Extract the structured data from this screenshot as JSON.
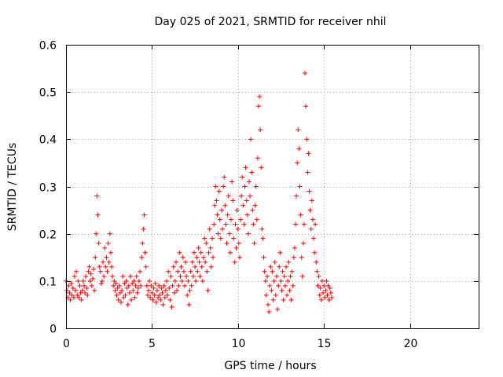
{
  "chart_data": {
    "type": "scatter",
    "title": "Day 025 of 2021, SRMTID for receiver nhil",
    "xlabel": "GPS time / hours",
    "ylabel": "SRMTID / TECUs",
    "xlim": [
      0,
      24
    ],
    "ylim": [
      0,
      0.6
    ],
    "xticks": [
      0,
      5,
      10,
      15,
      20
    ],
    "xtick_labels": [
      "0",
      "5",
      "10",
      "15",
      "20"
    ],
    "yticks": [
      0,
      0.1,
      0.2,
      0.3,
      0.4,
      0.5,
      0.6
    ],
    "ytick_labels": [
      "0",
      "0.1",
      "0.2",
      "0.3",
      "0.4",
      "0.5",
      "0.6"
    ],
    "grid": true,
    "marker": "+",
    "color": "#ff0000",
    "series": [
      {
        "name": "SRMTID",
        "points": [
          [
            0.0,
            0.1
          ],
          [
            0.05,
            0.08
          ],
          [
            0.1,
            0.065
          ],
          [
            0.15,
            0.09
          ],
          [
            0.2,
            0.075
          ],
          [
            0.25,
            0.06
          ],
          [
            0.3,
            0.095
          ],
          [
            0.35,
            0.07
          ],
          [
            0.4,
            0.085
          ],
          [
            0.45,
            0.065
          ],
          [
            0.5,
            0.11
          ],
          [
            0.55,
            0.08
          ],
          [
            0.6,
            0.12
          ],
          [
            0.65,
            0.07
          ],
          [
            0.7,
            0.1
          ],
          [
            0.75,
            0.065
          ],
          [
            0.8,
            0.09
          ],
          [
            0.85,
            0.075
          ],
          [
            0.9,
            0.06
          ],
          [
            0.95,
            0.08
          ],
          [
            1.0,
            0.1
          ],
          [
            1.05,
            0.09
          ],
          [
            1.1,
            0.075
          ],
          [
            1.15,
            0.11
          ],
          [
            1.2,
            0.085
          ],
          [
            1.25,
            0.07
          ],
          [
            1.3,
            0.12
          ],
          [
            1.35,
            0.13
          ],
          [
            1.4,
            0.1
          ],
          [
            1.45,
            0.115
          ],
          [
            1.5,
            0.09
          ],
          [
            1.55,
            0.105
          ],
          [
            1.6,
            0.125
          ],
          [
            1.65,
            0.08
          ],
          [
            1.7,
            0.15
          ],
          [
            1.75,
            0.2
          ],
          [
            1.8,
            0.28
          ],
          [
            1.85,
            0.24
          ],
          [
            1.9,
            0.18
          ],
          [
            1.95,
            0.13
          ],
          [
            2.0,
            0.12
          ],
          [
            2.05,
            0.095
          ],
          [
            2.1,
            0.1
          ],
          [
            2.15,
            0.14
          ],
          [
            2.2,
            0.11
          ],
          [
            2.25,
            0.17
          ],
          [
            2.3,
            0.13
          ],
          [
            2.35,
            0.15
          ],
          [
            2.4,
            0.12
          ],
          [
            2.45,
            0.18
          ],
          [
            2.5,
            0.14
          ],
          [
            2.55,
            0.2
          ],
          [
            2.6,
            0.16
          ],
          [
            2.65,
            0.13
          ],
          [
            2.7,
            0.11
          ],
          [
            2.75,
            0.09
          ],
          [
            2.8,
            0.1
          ],
          [
            2.85,
            0.08
          ],
          [
            2.9,
            0.095
          ],
          [
            2.95,
            0.07
          ],
          [
            3.0,
            0.085
          ],
          [
            3.05,
            0.06
          ],
          [
            3.1,
            0.09
          ],
          [
            3.15,
            0.075
          ],
          [
            3.2,
            0.055
          ],
          [
            3.25,
            0.08
          ],
          [
            3.3,
            0.11
          ],
          [
            3.35,
            0.065
          ],
          [
            3.4,
            0.095
          ],
          [
            3.45,
            0.07
          ],
          [
            3.5,
            0.1
          ],
          [
            3.55,
            0.085
          ],
          [
            3.6,
            0.05
          ],
          [
            3.65,
            0.09
          ],
          [
            3.7,
            0.075
          ],
          [
            3.75,
            0.11
          ],
          [
            3.8,
            0.06
          ],
          [
            3.85,
            0.095
          ],
          [
            3.9,
            0.08
          ],
          [
            3.95,
            0.1
          ],
          [
            4.0,
            0.065
          ],
          [
            4.05,
            0.09
          ],
          [
            4.1,
            0.11
          ],
          [
            4.15,
            0.075
          ],
          [
            4.2,
            0.085
          ],
          [
            4.25,
            0.1
          ],
          [
            4.3,
            0.12
          ],
          [
            4.35,
            0.09
          ],
          [
            4.4,
            0.15
          ],
          [
            4.45,
            0.18
          ],
          [
            4.5,
            0.21
          ],
          [
            4.55,
            0.24
          ],
          [
            4.6,
            0.16
          ],
          [
            4.65,
            0.13
          ],
          [
            4.7,
            0.09
          ],
          [
            4.75,
            0.07
          ],
          [
            4.8,
            0.08
          ],
          [
            4.85,
            0.1
          ],
          [
            4.9,
            0.065
          ],
          [
            4.95,
            0.09
          ],
          [
            5.0,
            0.075
          ],
          [
            5.05,
            0.06
          ],
          [
            5.1,
            0.085
          ],
          [
            5.15,
            0.07
          ],
          [
            5.2,
            0.095
          ],
          [
            5.25,
            0.055
          ],
          [
            5.3,
            0.08
          ],
          [
            5.35,
            0.065
          ],
          [
            5.4,
            0.09
          ],
          [
            5.45,
            0.07
          ],
          [
            5.5,
            0.06
          ],
          [
            5.55,
            0.085
          ],
          [
            5.6,
            0.075
          ],
          [
            5.65,
            0.05
          ],
          [
            5.7,
            0.09
          ],
          [
            5.75,
            0.065
          ],
          [
            5.8,
            0.08
          ],
          [
            5.85,
            0.1
          ],
          [
            5.9,
            0.07
          ],
          [
            5.95,
            0.12
          ],
          [
            6.0,
            0.085
          ],
          [
            6.05,
            0.06
          ],
          [
            6.1,
            0.11
          ],
          [
            6.15,
            0.045
          ],
          [
            6.2,
            0.09
          ],
          [
            6.25,
            0.13
          ],
          [
            6.3,
            0.075
          ],
          [
            6.35,
            0.1
          ],
          [
            6.4,
            0.14
          ],
          [
            6.45,
            0.08
          ],
          [
            6.5,
            0.12
          ],
          [
            6.55,
            0.09
          ],
          [
            6.6,
            0.16
          ],
          [
            6.65,
            0.11
          ],
          [
            6.7,
            0.13
          ],
          [
            6.75,
            0.1
          ],
          [
            6.8,
            0.15
          ],
          [
            6.85,
            0.12
          ],
          [
            6.9,
            0.09
          ],
          [
            6.95,
            0.14
          ],
          [
            7.0,
            0.11
          ],
          [
            7.05,
            0.07
          ],
          [
            7.1,
            0.1
          ],
          [
            7.15,
            0.05
          ],
          [
            7.2,
            0.08
          ],
          [
            7.25,
            0.12
          ],
          [
            7.3,
            0.09
          ],
          [
            7.35,
            0.14
          ],
          [
            7.4,
            0.11
          ],
          [
            7.45,
            0.16
          ],
          [
            7.5,
            0.13
          ],
          [
            7.55,
            0.1
          ],
          [
            7.6,
            0.15
          ],
          [
            7.65,
            0.12
          ],
          [
            7.7,
            0.17
          ],
          [
            7.75,
            0.14
          ],
          [
            7.8,
            0.11
          ],
          [
            7.85,
            0.16
          ],
          [
            7.9,
            0.13
          ],
          [
            7.95,
            0.1
          ],
          [
            8.0,
            0.15
          ],
          [
            8.05,
            0.19
          ],
          [
            8.1,
            0.14
          ],
          [
            8.15,
            0.18
          ],
          [
            8.2,
            0.12
          ],
          [
            8.25,
            0.08
          ],
          [
            8.3,
            0.16
          ],
          [
            8.35,
            0.21
          ],
          [
            8.4,
            0.17
          ],
          [
            8.45,
            0.13
          ],
          [
            8.5,
            0.19
          ],
          [
            8.55,
            0.15
          ],
          [
            8.6,
            0.22
          ],
          [
            8.65,
            0.26
          ],
          [
            8.7,
            0.3
          ],
          [
            8.75,
            0.27
          ],
          [
            8.8,
            0.24
          ],
          [
            8.85,
            0.2
          ],
          [
            8.9,
            0.29
          ],
          [
            8.95,
            0.23
          ],
          [
            9.0,
            0.19
          ],
          [
            9.05,
            0.25
          ],
          [
            9.1,
            0.21
          ],
          [
            9.15,
            0.3
          ],
          [
            9.2,
            0.32
          ],
          [
            9.25,
            0.26
          ],
          [
            9.3,
            0.22
          ],
          [
            9.35,
            0.18
          ],
          [
            9.4,
            0.24
          ],
          [
            9.45,
            0.28
          ],
          [
            9.5,
            0.2
          ],
          [
            9.55,
            0.16
          ],
          [
            9.6,
            0.23
          ],
          [
            9.65,
            0.31
          ],
          [
            9.7,
            0.27
          ],
          [
            9.75,
            0.19
          ],
          [
            9.8,
            0.14
          ],
          [
            9.85,
            0.22
          ],
          [
            9.9,
            0.17
          ],
          [
            9.95,
            0.25
          ],
          [
            10.0,
            0.21
          ],
          [
            10.05,
            0.18
          ],
          [
            10.1,
            0.15
          ],
          [
            10.15,
            0.23
          ],
          [
            10.2,
            0.28
          ],
          [
            10.25,
            0.32
          ],
          [
            10.3,
            0.26
          ],
          [
            10.35,
            0.22
          ],
          [
            10.4,
            0.3
          ],
          [
            10.45,
            0.34
          ],
          [
            10.5,
            0.27
          ],
          [
            10.55,
            0.24
          ],
          [
            10.6,
            0.2
          ],
          [
            10.65,
            0.31
          ],
          [
            10.7,
            0.28
          ],
          [
            10.75,
            0.4
          ],
          [
            10.8,
            0.33
          ],
          [
            10.85,
            0.25
          ],
          [
            10.9,
            0.22
          ],
          [
            10.95,
            0.18
          ],
          [
            11.0,
            0.26
          ],
          [
            11.05,
            0.3
          ],
          [
            11.1,
            0.23
          ],
          [
            11.15,
            0.36
          ],
          [
            11.2,
            0.47
          ],
          [
            11.25,
            0.49
          ],
          [
            11.3,
            0.42
          ],
          [
            11.35,
            0.34
          ],
          [
            11.4,
            0.21
          ],
          [
            11.45,
            0.19
          ],
          [
            11.5,
            0.15
          ],
          [
            11.55,
            0.12
          ],
          [
            11.6,
            0.1
          ],
          [
            11.65,
            0.07
          ],
          [
            11.7,
            0.11
          ],
          [
            11.75,
            0.05
          ],
          [
            11.8,
            0.035
          ],
          [
            11.85,
            0.09
          ],
          [
            11.9,
            0.13
          ],
          [
            11.95,
            0.08
          ],
          [
            12.0,
            0.12
          ],
          [
            12.05,
            0.06
          ],
          [
            12.1,
            0.1
          ],
          [
            12.15,
            0.14
          ],
          [
            12.2,
            0.07
          ],
          [
            12.25,
            0.11
          ],
          [
            12.3,
            0.04
          ],
          [
            12.35,
            0.09
          ],
          [
            12.4,
            0.13
          ],
          [
            12.45,
            0.16
          ],
          [
            12.5,
            0.1
          ],
          [
            12.55,
            0.08
          ],
          [
            12.6,
            0.12
          ],
          [
            12.65,
            0.06
          ],
          [
            12.7,
            0.11
          ],
          [
            12.75,
            0.09
          ],
          [
            12.8,
            0.13
          ],
          [
            12.85,
            0.07
          ],
          [
            12.9,
            0.1
          ],
          [
            12.95,
            0.14
          ],
          [
            13.0,
            0.08
          ],
          [
            13.05,
            0.11
          ],
          [
            13.1,
            0.06
          ],
          [
            13.15,
            0.12
          ],
          [
            13.2,
            0.09
          ],
          [
            13.25,
            0.15
          ],
          [
            13.3,
            0.17
          ],
          [
            13.35,
            0.22
          ],
          [
            13.4,
            0.28
          ],
          [
            13.45,
            0.35
          ],
          [
            13.5,
            0.42
          ],
          [
            13.55,
            0.38
          ],
          [
            13.6,
            0.3
          ],
          [
            13.65,
            0.24
          ],
          [
            13.7,
            0.15
          ],
          [
            13.75,
            0.11
          ],
          [
            13.8,
            0.18
          ],
          [
            13.85,
            0.22
          ],
          [
            13.9,
            0.54
          ],
          [
            13.95,
            0.47
          ],
          [
            14.0,
            0.4
          ],
          [
            14.05,
            0.33
          ],
          [
            14.1,
            0.37
          ],
          [
            14.15,
            0.29
          ],
          [
            14.2,
            0.25
          ],
          [
            14.25,
            0.21
          ],
          [
            14.3,
            0.27
          ],
          [
            14.35,
            0.23
          ],
          [
            14.4,
            0.19
          ],
          [
            14.45,
            0.16
          ],
          [
            14.5,
            0.22
          ],
          [
            14.55,
            0.14
          ],
          [
            14.6,
            0.12
          ],
          [
            14.65,
            0.09
          ],
          [
            14.7,
            0.11
          ],
          [
            14.75,
            0.07
          ],
          [
            14.8,
            0.085
          ],
          [
            14.85,
            0.06
          ],
          [
            14.9,
            0.1
          ],
          [
            14.95,
            0.075
          ],
          [
            15.0,
            0.09
          ],
          [
            15.05,
            0.065
          ],
          [
            15.1,
            0.08
          ],
          [
            15.15,
            0.1
          ],
          [
            15.2,
            0.07
          ],
          [
            15.25,
            0.09
          ],
          [
            15.3,
            0.06
          ],
          [
            15.35,
            0.085
          ],
          [
            15.4,
            0.075
          ],
          [
            15.45,
            0.065
          ]
        ]
      }
    ]
  }
}
